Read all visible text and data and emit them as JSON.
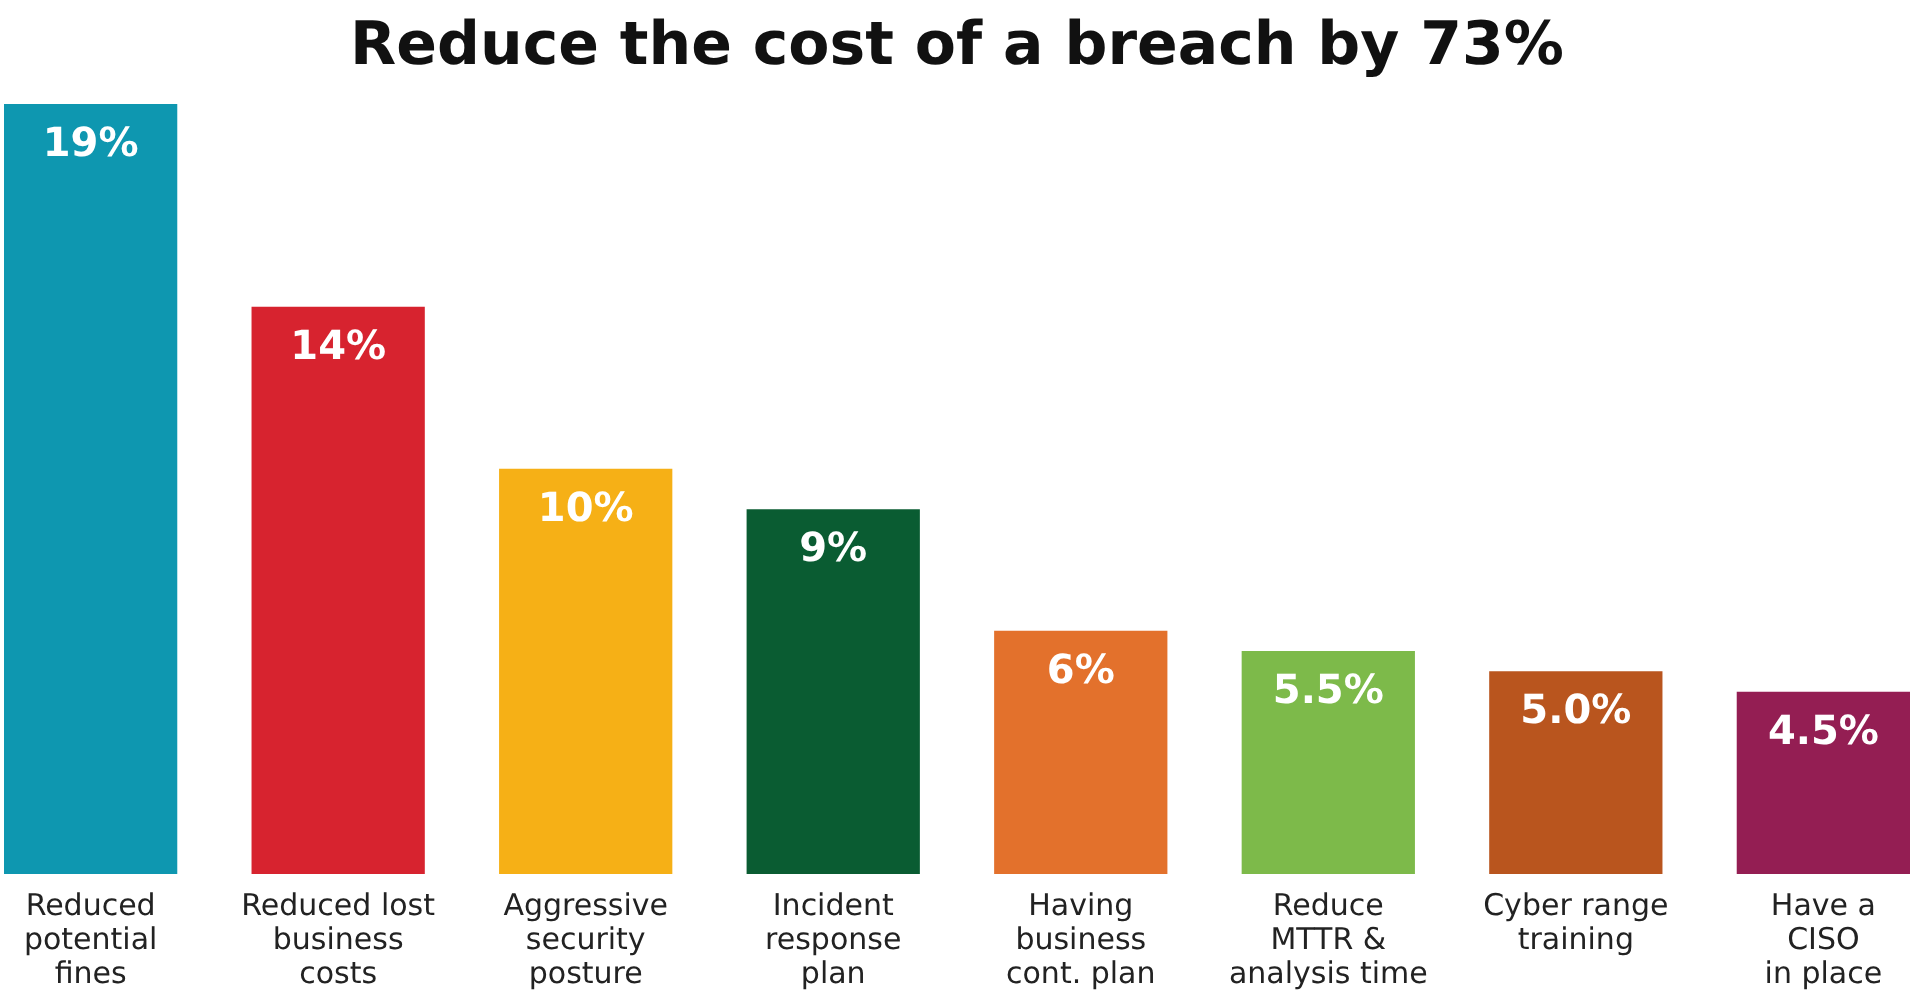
{
  "chart_data": {
    "type": "bar",
    "title": "Reduce the cost of a breach by 73%",
    "categories": [
      "Reduced\npotential\nfines",
      "Reduced lost\nbusiness\ncosts",
      "Aggressive\nsecurity\nposture",
      "Incident\nresponse\nplan",
      "Having\nbusiness\ncont. plan",
      "Reduce\nMTTR &\nanalysis time",
      "Cyber range\ntraining",
      "Have a\nCISO\nin place"
    ],
    "values": [
      19,
      14,
      10,
      9,
      6,
      5.5,
      5.0,
      4.5
    ],
    "colors": [
      "#0e97b0",
      "#d7232f",
      "#f6b016",
      "#0a5c32",
      "#e3712c",
      "#7dba4a",
      "#b9551e",
      "#941e53"
    ],
    "value_labels": [
      "19%",
      "14%",
      "10%",
      "9%",
      "6%",
      "5.5%",
      "5.0%",
      "4.5%"
    ],
    "grid": false
  }
}
